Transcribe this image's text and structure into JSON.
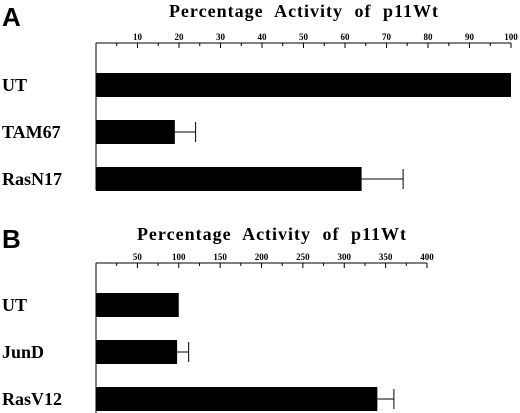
{
  "chart_data": [
    {
      "panel": "A",
      "type": "bar",
      "orientation": "horizontal",
      "title": "Percentage Activity of p11Wt",
      "categories": [
        "UT",
        "TAM67",
        "RasN17"
      ],
      "values": [
        100,
        19,
        64
      ],
      "error_plus": [
        0,
        5,
        10
      ],
      "xlim": [
        0,
        100
      ],
      "xticks": [
        10,
        20,
        30,
        40,
        50,
        60,
        70,
        80,
        90,
        100
      ],
      "tick_position": "top",
      "grid": false,
      "bar_color": "#000000"
    },
    {
      "panel": "B",
      "type": "bar",
      "orientation": "horizontal",
      "title": "Percentage Activity of p11Wt",
      "categories": [
        "UT",
        "JunD",
        "RasV12"
      ],
      "values": [
        100,
        98,
        340
      ],
      "error_plus": [
        0,
        14,
        20
      ],
      "xlim": [
        0,
        400
      ],
      "xticks": [
        50,
        100,
        150,
        200,
        250,
        300,
        350,
        400
      ],
      "tick_position": "top",
      "grid": false,
      "bar_color": "#000000"
    }
  ]
}
